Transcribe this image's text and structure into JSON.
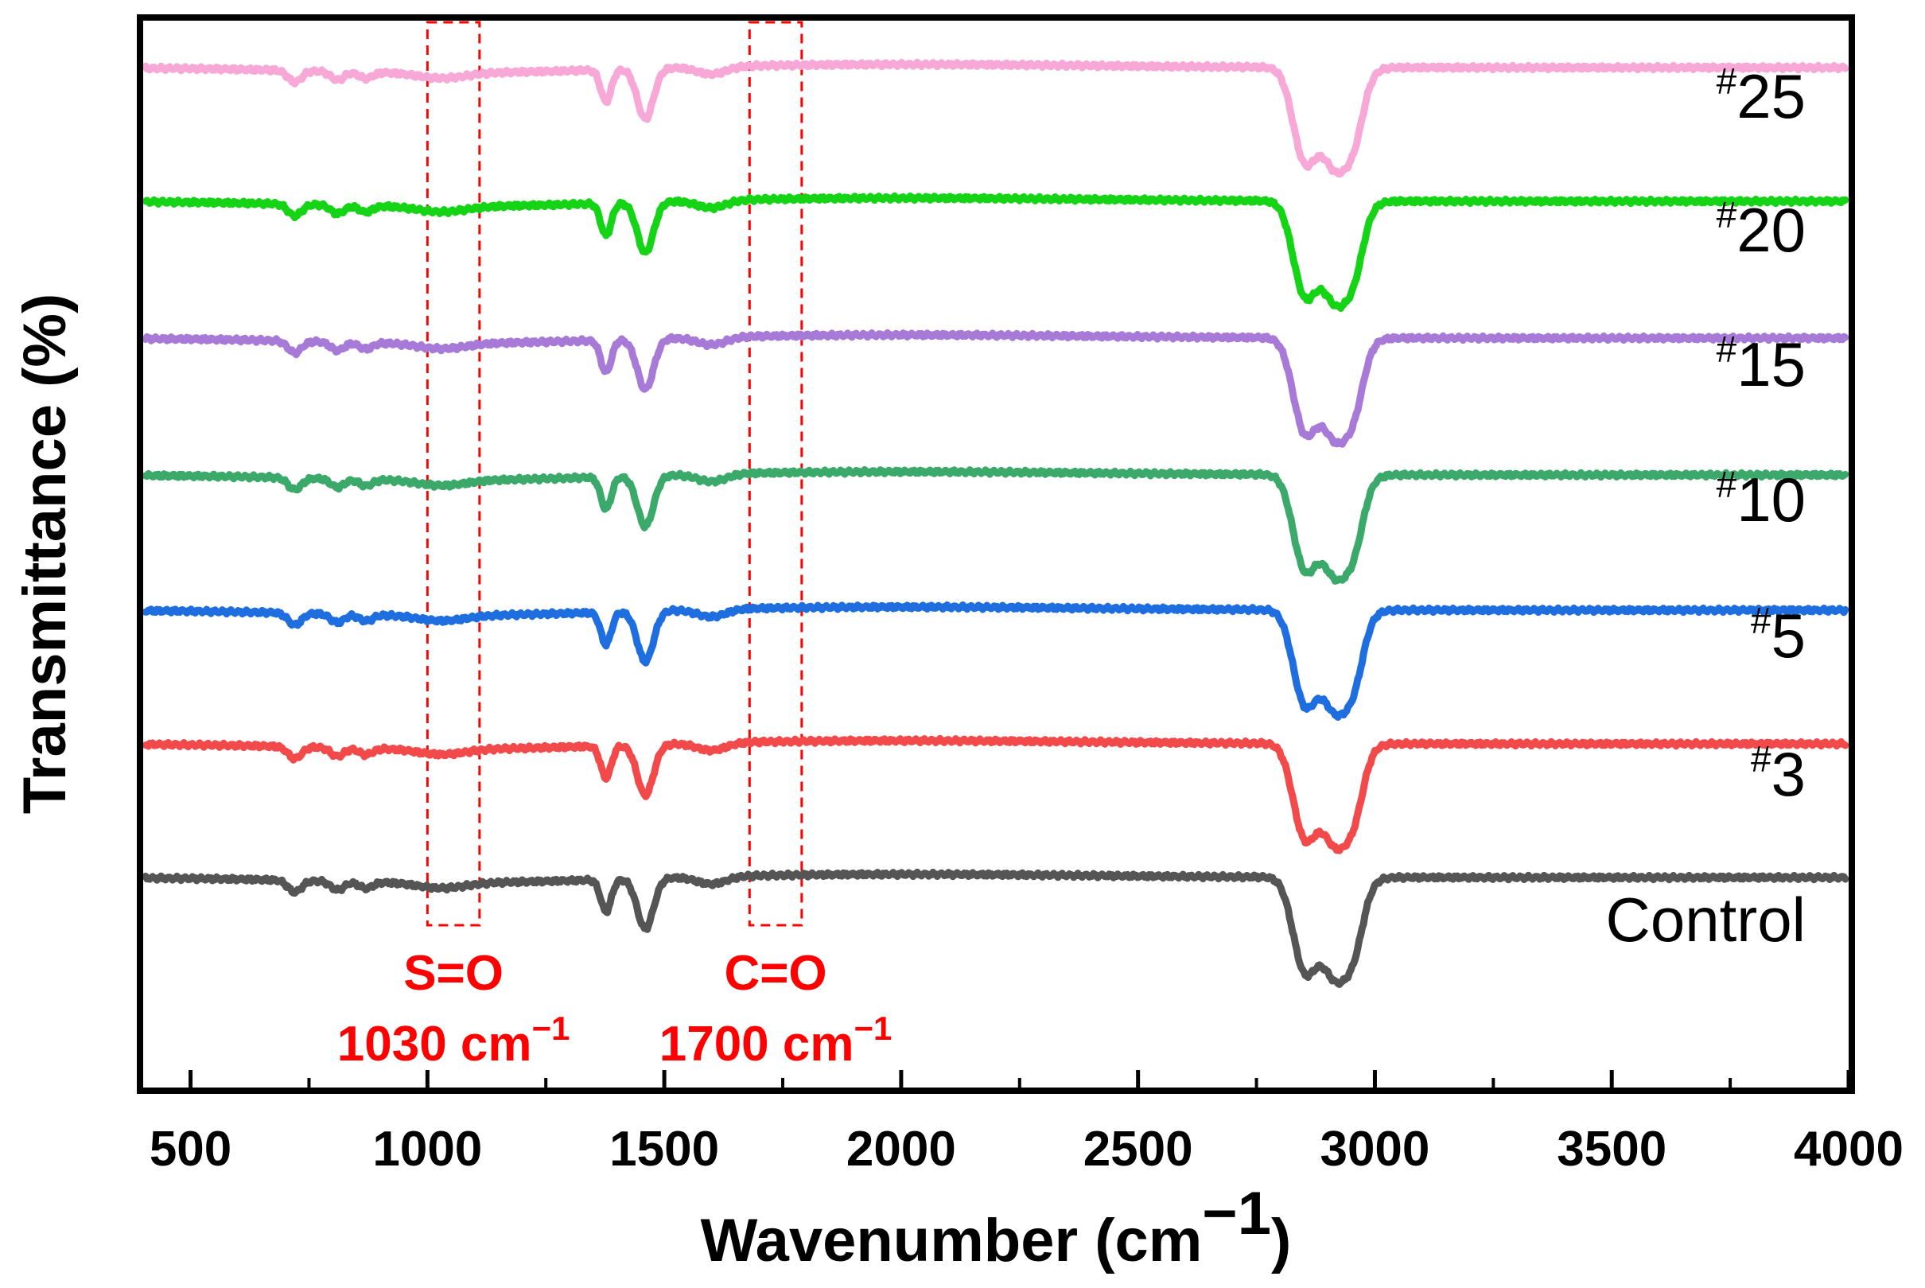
{
  "chart_data": {
    "type": "line",
    "title": "",
    "xlabel": "Wavenumber (cm",
    "xlabel_unit_power": "−1",
    "xlabel_suffix": ")",
    "ylabel": "Transmittance (%)",
    "xlim": [
      400,
      4000
    ],
    "xticks": [
      500,
      1000,
      1500,
      2000,
      2500,
      3000,
      3500,
      4000
    ],
    "xtick_labels": [
      "500",
      "1000",
      "1500",
      "2000",
      "2500",
      "3000",
      "3500",
      "4000"
    ],
    "y_stacked_offsets": true,
    "series": [
      {
        "name": "Control",
        "sup": "",
        "label": "Control",
        "color": "#555555",
        "offset": 0,
        "scale": 1.0
      },
      {
        "name": "#3",
        "sup": "#",
        "label": "3",
        "color": "#f2494b",
        "offset": 1,
        "scale": 1.0
      },
      {
        "name": "#5",
        "sup": "#",
        "label": "5",
        "color": "#1f6ee0",
        "offset": 2,
        "scale": 1.0
      },
      {
        "name": "#10",
        "sup": "#",
        "label": "10",
        "color": "#3aa96a",
        "offset": 3,
        "scale": 1.0
      },
      {
        "name": "#15",
        "sup": "#",
        "label": "15",
        "color": "#a77ad8",
        "offset": 4,
        "scale": 1.0
      },
      {
        "name": "#20",
        "sup": "#",
        "label": "20",
        "color": "#15d315",
        "offset": 5,
        "scale": 1.0
      },
      {
        "name": "#25",
        "sup": "#",
        "label": "25",
        "color": "#f7a8d6",
        "offset": 6,
        "scale": 1.0
      }
    ],
    "bands": [
      {
        "x": 400,
        "dip": 0.0,
        "width": 1
      },
      {
        "x": 720,
        "dip": 0.11,
        "width": 14
      },
      {
        "x": 810,
        "dip": 0.08,
        "width": 14
      },
      {
        "x": 870,
        "dip": 0.06,
        "width": 14
      },
      {
        "x": 1030,
        "dip": 0.05,
        "width": 50
      },
      {
        "x": 1377,
        "dip": 0.3,
        "width": 11
      },
      {
        "x": 1460,
        "dip": 0.47,
        "width": 17
      },
      {
        "x": 1600,
        "dip": 0.07,
        "width": 30
      },
      {
        "x": 2850,
        "dip": 0.78,
        "width": 24
      },
      {
        "x": 2920,
        "dip": 0.95,
        "width": 34
      },
      {
        "x": 2960,
        "dip": 0.25,
        "width": 18
      }
    ],
    "annotations": [
      {
        "name": "S=O",
        "label": "S=O",
        "wavenumber_label": "1030 cm",
        "power": "−1",
        "x_range": [
          1000,
          1110
        ],
        "color": "#ff0000"
      },
      {
        "name": "C=O",
        "label": "C=O",
        "wavenumber_label": "1700 cm",
        "power": "−1",
        "x_range": [
          1680,
          1790
        ],
        "color": "#ff0000"
      }
    ]
  }
}
